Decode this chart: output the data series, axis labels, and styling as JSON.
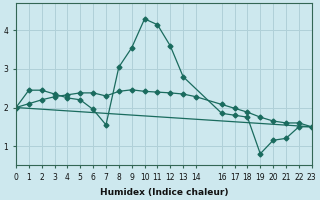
{
  "xlabel": "Humidex (Indice chaleur)",
  "bg_color": "#cde8ee",
  "grid_color": "#b0d0d8",
  "line_color": "#1a6b5e",
  "xlim": [
    0,
    23
  ],
  "ylim": [
    0.5,
    4.7
  ],
  "xticks": [
    0,
    1,
    2,
    3,
    4,
    5,
    6,
    7,
    8,
    9,
    10,
    11,
    12,
    13,
    14,
    16,
    17,
    18,
    19,
    20,
    21,
    22,
    23
  ],
  "xtick_labels": [
    "0",
    "1",
    "2",
    "3",
    "4",
    "5",
    "6",
    "7",
    "8",
    "9",
    "10",
    "11",
    "12",
    "13",
    "14",
    "16",
    "17",
    "18",
    "19",
    "20",
    "21",
    "22",
    "23"
  ],
  "yticks": [
    1,
    2,
    3,
    4
  ],
  "line1_x": [
    0,
    1,
    2,
    3,
    4,
    5,
    6,
    7,
    8,
    9,
    10,
    11,
    12,
    13,
    16,
    17,
    18,
    19,
    20,
    21,
    22,
    23
  ],
  "line1_y": [
    2.0,
    2.45,
    2.45,
    2.35,
    2.25,
    2.2,
    1.95,
    1.55,
    3.05,
    3.55,
    4.3,
    4.15,
    3.6,
    2.8,
    1.85,
    1.8,
    1.75,
    0.8,
    1.15,
    1.2,
    1.5,
    1.5
  ],
  "line2_x": [
    0,
    1,
    2,
    3,
    4,
    5,
    6,
    7,
    8,
    9,
    10,
    11,
    12,
    13,
    14,
    16,
    17,
    18,
    19,
    20,
    21,
    22,
    23
  ],
  "line2_y": [
    2.0,
    2.1,
    2.2,
    2.28,
    2.33,
    2.38,
    2.38,
    2.3,
    2.42,
    2.46,
    2.42,
    2.4,
    2.38,
    2.35,
    2.28,
    2.08,
    1.98,
    1.88,
    1.75,
    1.65,
    1.6,
    1.6,
    1.5
  ],
  "line3_x": [
    0,
    23
  ],
  "line3_y": [
    2.0,
    1.5
  ]
}
